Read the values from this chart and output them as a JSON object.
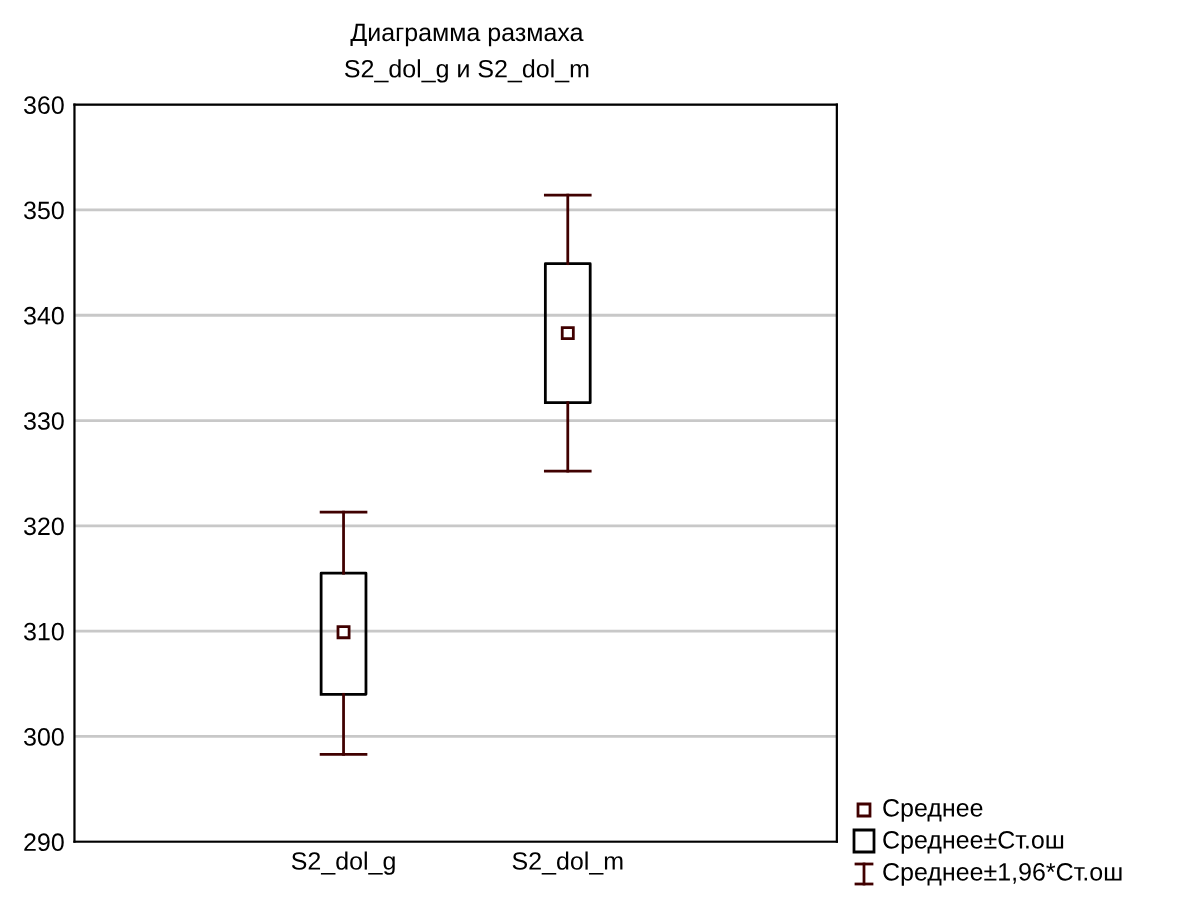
{
  "chart_data": {
    "type": "box",
    "title": "Диаграмма размаха",
    "subtitle": "S2_dol_g и S2_dol_m",
    "categories": [
      "S2_dol_g",
      "S2_dol_m"
    ],
    "boxes": [
      {
        "low": 298.3,
        "q1": 304.0,
        "median": 309.9,
        "q3": 315.5,
        "high": 321.3
      },
      {
        "low": 325.2,
        "q1": 331.7,
        "median": 338.3,
        "q3": 344.9,
        "high": 351.4
      }
    ],
    "ylim": [
      290,
      360
    ],
    "yticks": [
      290,
      300,
      310,
      320,
      330,
      340,
      350,
      360
    ],
    "grid": "y",
    "marker": "square",
    "annotations": [
      "Среднее",
      "Среднее±Ст.ош",
      "Среднее±1,96*Ст.ош"
    ]
  }
}
